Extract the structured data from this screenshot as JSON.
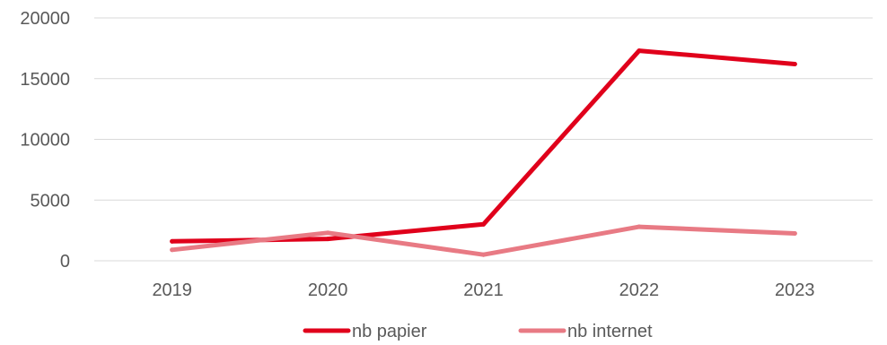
{
  "chart_data": {
    "type": "line",
    "categories": [
      "2019",
      "2020",
      "2021",
      "2022",
      "2023"
    ],
    "series": [
      {
        "name": "nb papier",
        "values": [
          1600,
          1800,
          3000,
          17300,
          16200
        ],
        "color": "#e0001b"
      },
      {
        "name": "nb internet",
        "values": [
          900,
          2300,
          500,
          2800,
          2250
        ],
        "color": "#e87a84"
      }
    ],
    "ylim": [
      0,
      20000
    ],
    "yticks": [
      "0",
      "5000",
      "10000",
      "15000",
      "20000"
    ],
    "grid": true,
    "legend": "bottom-center",
    "title": "",
    "xlabel": "",
    "ylabel": ""
  }
}
